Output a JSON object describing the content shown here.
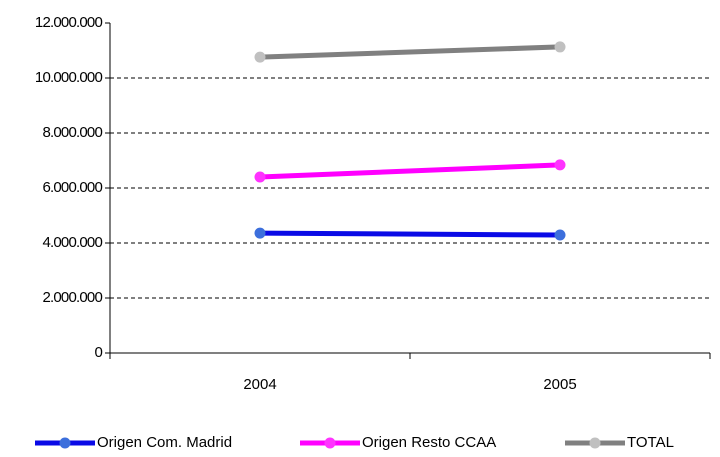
{
  "chart_data": {
    "type": "line",
    "categories": [
      "2004",
      "2005"
    ],
    "series": [
      {
        "name": "Origen Com. Madrid",
        "color": "#0a0ae6",
        "marker_color": "#3c6fdc",
        "values": [
          4360000,
          4290000
        ]
      },
      {
        "name": "Origen Resto CCAA",
        "color": "#ff00ff",
        "marker_color": "#ff33ff",
        "values": [
          6400000,
          6840000
        ]
      },
      {
        "name": "TOTAL",
        "color": "#808080",
        "marker_color": "#c0c0c0",
        "values": [
          10760000,
          11130000
        ]
      }
    ],
    "ylim": [
      0,
      12000000
    ],
    "yticks": [
      0,
      {
        "value": 2000000,
        "label": "2.000.000"
      },
      {
        "value": 4000000,
        "label": "4.000.000"
      },
      {
        "value": 6000000,
        "label": "6.000.000"
      },
      {
        "value": 8000000,
        "label": "8.000.000"
      },
      {
        "value": 10000000,
        "label": "10.000.000"
      },
      {
        "value": 12000000,
        "label": "12.000.000"
      }
    ],
    "grid": true,
    "legend": "bottom"
  }
}
